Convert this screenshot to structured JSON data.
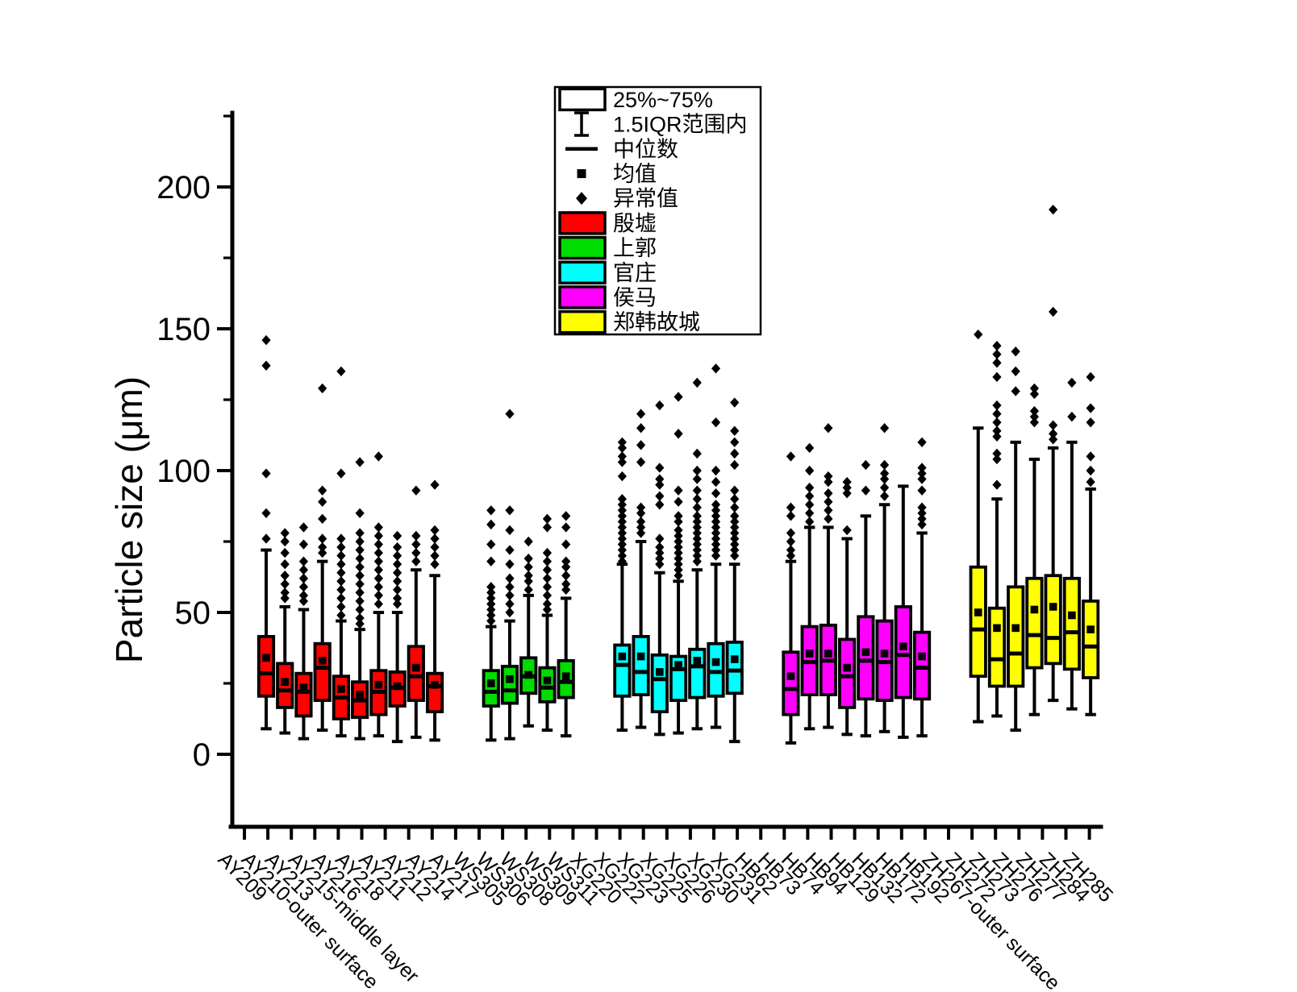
{
  "chart_data": {
    "type": "boxplot",
    "title": "",
    "ylabel": "Particle size (μm)",
    "ylim": [
      -26,
      227
    ],
    "yticks_major": [
      0,
      50,
      100,
      150,
      200
    ],
    "yticks_minor": [
      25,
      75,
      125,
      175,
      225
    ],
    "grid": false,
    "legend_position": "top-center",
    "legend_stats": [
      {
        "symbol": "box",
        "label": "25%~75%"
      },
      {
        "symbol": "whisker",
        "label": "1.5IQR范围内"
      },
      {
        "symbol": "median-line",
        "label": "中位数"
      },
      {
        "symbol": "mean-square",
        "label": "均值"
      },
      {
        "symbol": "outlier-diamond",
        "label": "异常值"
      }
    ],
    "groups": [
      {
        "name": "殷墟",
        "color": "#FF0000"
      },
      {
        "name": "上郭",
        "color": "#00DC00"
      },
      {
        "name": "官庄",
        "color": "#00FFFF"
      },
      {
        "name": "侯马",
        "color": "#FF00FF"
      },
      {
        "name": "郑韩故城",
        "color": "#FFFF00"
      }
    ],
    "samples": [
      {
        "label": "AY209",
        "group": "殷墟",
        "whisker_low": 9,
        "q1": 20.5,
        "median": 28.5,
        "mean": 34,
        "q3": 41.5,
        "whisker_high": 72,
        "outliers": [
          146,
          137,
          99,
          85,
          76
        ]
      },
      {
        "label": "AY210-outer surface",
        "group": "殷墟",
        "whisker_low": 7.5,
        "q1": 16.5,
        "median": 22.5,
        "mean": 25.5,
        "q3": 32,
        "whisker_high": 52,
        "outliers": [
          78,
          75,
          71,
          67,
          63,
          60,
          57,
          55
        ]
      },
      {
        "label": "AY213",
        "group": "殷墟",
        "whisker_low": 5.5,
        "q1": 13.5,
        "median": 22,
        "mean": 23.5,
        "q3": 28.5,
        "whisker_high": 51,
        "outliers": [
          80,
          74,
          68,
          65,
          62,
          59,
          56,
          54
        ]
      },
      {
        "label": "AY215-middle layer",
        "group": "殷墟",
        "whisker_low": 8.5,
        "q1": 19,
        "median": 30.5,
        "mean": 33,
        "q3": 39,
        "whisker_high": 68,
        "outliers": [
          129,
          93,
          89,
          83,
          76,
          73,
          71
        ]
      },
      {
        "label": "AY216",
        "group": "殷墟",
        "whisker_low": 6.5,
        "q1": 12.5,
        "median": 20,
        "mean": 23,
        "q3": 27.5,
        "whisker_high": 47,
        "outliers": [
          135,
          99,
          76,
          73,
          70,
          67,
          64,
          61,
          58,
          55,
          52,
          49
        ]
      },
      {
        "label": "AY218",
        "group": "殷墟",
        "whisker_low": 5.5,
        "q1": 13,
        "median": 19,
        "mean": 21,
        "q3": 25.5,
        "whisker_high": 44,
        "outliers": [
          103,
          85,
          78,
          75,
          72,
          69,
          66,
          63,
          60,
          57,
          54,
          51,
          48,
          46
        ]
      },
      {
        "label": "AY211",
        "group": "殷墟",
        "whisker_low": 6.5,
        "q1": 14,
        "median": 22,
        "mean": 24.5,
        "q3": 29.5,
        "whisker_high": 50,
        "outliers": [
          105,
          80,
          77,
          74,
          71,
          68,
          65,
          62,
          59,
          56,
          53
        ]
      },
      {
        "label": "AY212",
        "group": "殷墟",
        "whisker_low": 4.5,
        "q1": 17,
        "median": 23.5,
        "mean": 24,
        "q3": 29,
        "whisker_high": 50,
        "outliers": [
          77,
          73,
          70,
          67,
          64,
          61,
          58,
          55,
          53
        ]
      },
      {
        "label": "AY214",
        "group": "殷墟",
        "whisker_low": 6,
        "q1": 19,
        "median": 27.5,
        "mean": 30.5,
        "q3": 38,
        "whisker_high": 65,
        "outliers": [
          93,
          77,
          74,
          71,
          68
        ]
      },
      {
        "label": "AY217",
        "group": "殷墟",
        "whisker_low": 5,
        "q1": 15,
        "median": 24,
        "mean": 24.5,
        "q3": 28.5,
        "whisker_high": 63,
        "outliers": [
          95,
          79,
          76,
          73,
          70,
          67
        ]
      },
      {
        "label": "WS305",
        "group": "上郭",
        "whisker_low": 5,
        "q1": 17,
        "median": 22,
        "mean": 25,
        "q3": 29.5,
        "whisker_high": 45,
        "outliers": [
          86,
          81,
          74,
          68,
          59,
          57,
          55,
          53,
          51,
          49,
          47
        ]
      },
      {
        "label": "WS306",
        "group": "上郭",
        "whisker_low": 5.5,
        "q1": 18,
        "median": 22.5,
        "mean": 26.5,
        "q3": 31,
        "whisker_high": 47,
        "outliers": [
          120,
          86,
          79,
          72,
          67,
          62,
          59,
          56,
          53,
          50
        ]
      },
      {
        "label": "WS308",
        "group": "上郭",
        "whisker_low": 10,
        "q1": 21.5,
        "median": 27.5,
        "mean": 28,
        "q3": 34,
        "whisker_high": 56,
        "outliers": [
          75,
          69,
          66,
          63,
          61,
          58
        ]
      },
      {
        "label": "WS309",
        "group": "上郭",
        "whisker_low": 8.5,
        "q1": 18.5,
        "median": 23.5,
        "mean": 26,
        "q3": 30.5,
        "whisker_high": 49,
        "outliers": [
          83,
          80,
          71,
          68,
          65,
          62,
          59,
          56,
          53,
          51
        ]
      },
      {
        "label": "WS311",
        "group": "上郭",
        "whisker_low": 6.5,
        "q1": 20,
        "median": 25.5,
        "mean": 27.5,
        "q3": 33,
        "whisker_high": 55,
        "outliers": [
          84,
          80,
          74,
          68,
          66,
          63,
          60,
          58
        ]
      },
      {
        "label": "XG220",
        "group": "官庄",
        "whisker_low": 8.5,
        "q1": 20.5,
        "median": 31.5,
        "mean": 34.5,
        "q3": 38.5,
        "whisker_high": 67,
        "outliers": [
          110,
          108,
          105,
          103,
          98,
          90,
          88,
          86,
          84,
          82,
          80,
          78,
          76,
          74,
          72,
          70,
          68
        ]
      },
      {
        "label": "XG222",
        "group": "官庄",
        "whisker_low": 9.5,
        "q1": 21,
        "median": 29,
        "mean": 34.5,
        "q3": 41.5,
        "whisker_high": 75,
        "outliers": [
          120,
          115,
          109,
          103,
          87,
          85,
          82,
          80,
          78
        ]
      },
      {
        "label": "XG223",
        "group": "官庄",
        "whisker_low": 7,
        "q1": 15,
        "median": 26.5,
        "mean": 29,
        "q3": 35,
        "whisker_high": 64,
        "outliers": [
          123,
          101,
          97,
          95,
          91,
          88,
          76,
          73,
          71,
          69,
          67
        ]
      },
      {
        "label": "XG225",
        "group": "官庄",
        "whisker_low": 7.5,
        "q1": 19,
        "median": 30,
        "mean": 31.5,
        "q3": 34.5,
        "whisker_high": 61,
        "outliers": [
          126,
          113,
          93,
          89,
          84,
          82,
          79,
          77,
          75,
          73,
          71,
          69,
          67,
          65,
          63
        ]
      },
      {
        "label": "XG226",
        "group": "官庄",
        "whisker_low": 9,
        "q1": 20,
        "median": 31,
        "mean": 33,
        "q3": 37,
        "whisker_high": 65,
        "outliers": [
          131,
          106,
          100,
          97,
          93,
          90,
          87,
          84,
          82,
          80,
          78,
          76,
          74,
          72,
          70,
          68
        ]
      },
      {
        "label": "XG230",
        "group": "官庄",
        "whisker_low": 9.5,
        "q1": 20.5,
        "median": 29,
        "mean": 32.5,
        "q3": 39,
        "whisker_high": 67,
        "outliers": [
          136,
          117,
          100,
          96,
          92,
          88,
          86,
          84,
          82,
          80,
          78,
          76,
          74,
          72,
          70
        ]
      },
      {
        "label": "XG231",
        "group": "官庄",
        "whisker_low": 4.5,
        "q1": 21.5,
        "median": 29.5,
        "mean": 33.5,
        "q3": 39.5,
        "whisker_high": 67,
        "outliers": [
          124,
          114,
          110,
          106,
          102,
          93,
          90,
          87,
          84,
          82,
          80,
          78,
          76,
          74,
          72,
          70
        ]
      },
      {
        "label": "HB62",
        "group": "侯马",
        "whisker_low": 4,
        "q1": 14,
        "median": 23,
        "mean": 27.5,
        "q3": 36,
        "whisker_high": 68,
        "outliers": [
          105,
          87,
          84,
          78,
          75,
          72,
          70
        ]
      },
      {
        "label": "HB73",
        "group": "侯马",
        "whisker_low": 9,
        "q1": 21,
        "median": 32.5,
        "mean": 35.5,
        "q3": 45,
        "whisker_high": 80,
        "outliers": [
          108,
          100,
          94,
          91,
          88,
          85,
          82
        ]
      },
      {
        "label": "HB74",
        "group": "侯马",
        "whisker_low": 9.5,
        "q1": 21,
        "median": 33,
        "mean": 35.5,
        "q3": 45.5,
        "whisker_high": 80,
        "outliers": [
          115,
          98,
          96,
          92,
          89,
          86,
          83
        ]
      },
      {
        "label": "HB94",
        "group": "侯马",
        "whisker_low": 7,
        "q1": 16.5,
        "median": 27.5,
        "mean": 30.5,
        "q3": 40.5,
        "whisker_high": 76,
        "outliers": [
          96,
          94,
          92,
          79
        ]
      },
      {
        "label": "HB129",
        "group": "侯马",
        "whisker_low": 6.5,
        "q1": 19.5,
        "median": 33,
        "mean": 36,
        "q3": 48.5,
        "whisker_high": 84,
        "outliers": [
          102,
          93
        ]
      },
      {
        "label": "HB132",
        "group": "侯马",
        "whisker_low": 8,
        "q1": 19,
        "median": 32.5,
        "mean": 35.5,
        "q3": 47,
        "whisker_high": 88,
        "outliers": [
          115,
          102,
          99,
          97,
          94,
          91
        ]
      },
      {
        "label": "HB172",
        "group": "侯马",
        "whisker_low": 6,
        "q1": 20,
        "median": 35,
        "mean": 38,
        "q3": 52,
        "whisker_high": 94.5,
        "outliers": []
      },
      {
        "label": "HB192",
        "group": "侯马",
        "whisker_low": 6.5,
        "q1": 19.5,
        "median": 30.5,
        "mean": 34.5,
        "q3": 43,
        "whisker_high": 78,
        "outliers": [
          110,
          101,
          99,
          97,
          93,
          87,
          85,
          83,
          81
        ]
      },
      {
        "label": "ZH267-outer surface",
        "group": "郑韩故城",
        "whisker_low": 11.5,
        "q1": 27.5,
        "median": 44,
        "mean": 50,
        "q3": 66,
        "whisker_high": 115,
        "outliers": [
          148
        ]
      },
      {
        "label": "ZH272",
        "group": "郑韩故城",
        "whisker_low": 13.5,
        "q1": 24,
        "median": 33.5,
        "mean": 44.5,
        "q3": 51.5,
        "whisker_high": 90,
        "outliers": [
          144,
          141,
          138,
          133,
          123,
          120,
          117,
          114,
          112,
          106,
          104,
          95
        ]
      },
      {
        "label": "ZH273",
        "group": "郑韩故城",
        "whisker_low": 8.5,
        "q1": 24,
        "median": 35.5,
        "mean": 44.5,
        "q3": 59,
        "whisker_high": 110,
        "outliers": [
          142,
          135,
          128
        ]
      },
      {
        "label": "ZH276",
        "group": "郑韩故城",
        "whisker_low": 14,
        "q1": 30.5,
        "median": 42,
        "mean": 51,
        "q3": 62,
        "whisker_high": 104,
        "outliers": [
          129,
          127,
          121,
          119,
          117
        ]
      },
      {
        "label": "ZH277",
        "group": "郑韩故城",
        "whisker_low": 19,
        "q1": 32,
        "median": 41,
        "mean": 52,
        "q3": 63,
        "whisker_high": 108,
        "outliers": [
          192,
          156,
          116,
          113,
          111
        ]
      },
      {
        "label": "ZH284",
        "group": "郑韩故城",
        "whisker_low": 16,
        "q1": 30,
        "median": 43,
        "mean": 49,
        "q3": 62,
        "whisker_high": 110,
        "outliers": [
          131,
          119
        ]
      },
      {
        "label": "ZH285",
        "group": "郑韩故城",
        "whisker_low": 14,
        "q1": 27,
        "median": 38,
        "mean": 44,
        "q3": 54,
        "whisker_high": 93.5,
        "outliers": [
          133,
          122,
          117,
          105,
          100,
          96
        ]
      }
    ]
  }
}
